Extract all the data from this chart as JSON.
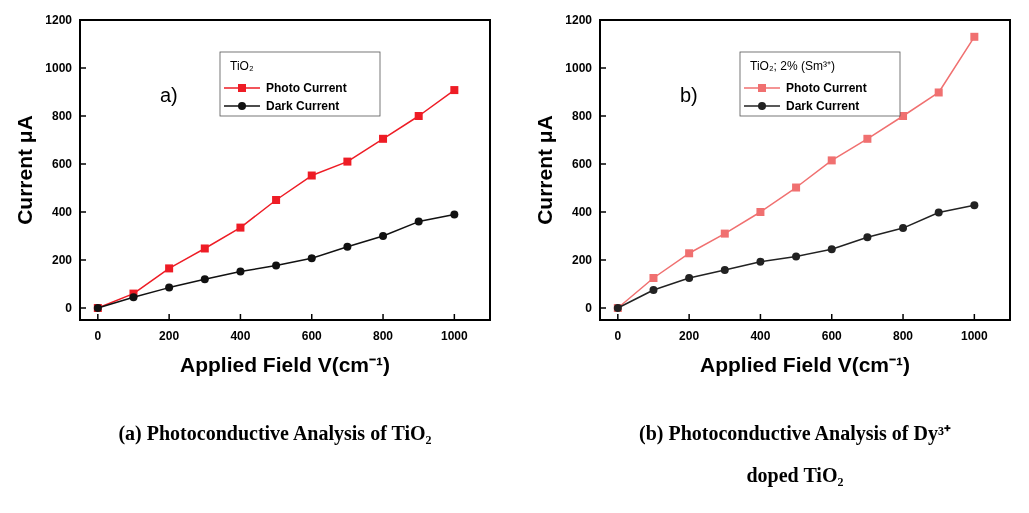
{
  "chart_data": [
    {
      "type": "line",
      "xlabel": "Applied Field V(cm⁻¹)",
      "ylabel": "Current μA",
      "legend_title": "TiO₂",
      "legend": "top",
      "xlim": [
        -50,
        1100
      ],
      "ylim": [
        -50,
        1200
      ],
      "xticks": [
        0,
        200,
        400,
        600,
        800,
        1000
      ],
      "yticks": [
        0,
        200,
        400,
        600,
        800,
        1000,
        1200
      ],
      "x": [
        0,
        100,
        200,
        300,
        400,
        500,
        600,
        700,
        800,
        900,
        1000
      ],
      "series": [
        {
          "name": "Photo Current",
          "color": "#ee1c25",
          "marker": "square",
          "values": [
            0,
            60,
            165,
            248,
            335,
            450,
            552,
            610,
            705,
            800,
            908
          ]
        },
        {
          "name": "Dark Current",
          "color": "#111111",
          "marker": "circle",
          "values": [
            0,
            45,
            85,
            120,
            152,
            177,
            207,
            255,
            300,
            360,
            390
          ]
        }
      ],
      "annotations": [
        "a)",
        "(a) Photoconductive Analysis of TiO₂"
      ]
    },
    {
      "type": "line",
      "xlabel": "Applied Field V(cm⁻¹)",
      "ylabel": "Current μA",
      "legend_title": "TiO₂; 2% (Sm³⁺)",
      "legend": "top",
      "xlim": [
        -50,
        1100
      ],
      "ylim": [
        -50,
        1200
      ],
      "xticks": [
        0,
        200,
        400,
        600,
        800,
        1000
      ],
      "yticks": [
        0,
        200,
        400,
        600,
        800,
        1000,
        1200
      ],
      "x": [
        0,
        100,
        200,
        300,
        400,
        500,
        600,
        700,
        800,
        900,
        1000
      ],
      "series": [
        {
          "name": "Photo Current",
          "color": "#f07070",
          "marker": "square",
          "values": [
            0,
            125,
            228,
            310,
            400,
            502,
            615,
            705,
            800,
            898,
            1130
          ]
        },
        {
          "name": "Dark Current",
          "color": "#222222",
          "marker": "circle",
          "values": [
            0,
            75,
            125,
            158,
            193,
            215,
            245,
            295,
            333,
            398,
            428
          ]
        }
      ],
      "annotations": [
        "b)",
        "(b) Photoconductive Analysis of Dy³⁺ doped TiO₂"
      ]
    }
  ]
}
